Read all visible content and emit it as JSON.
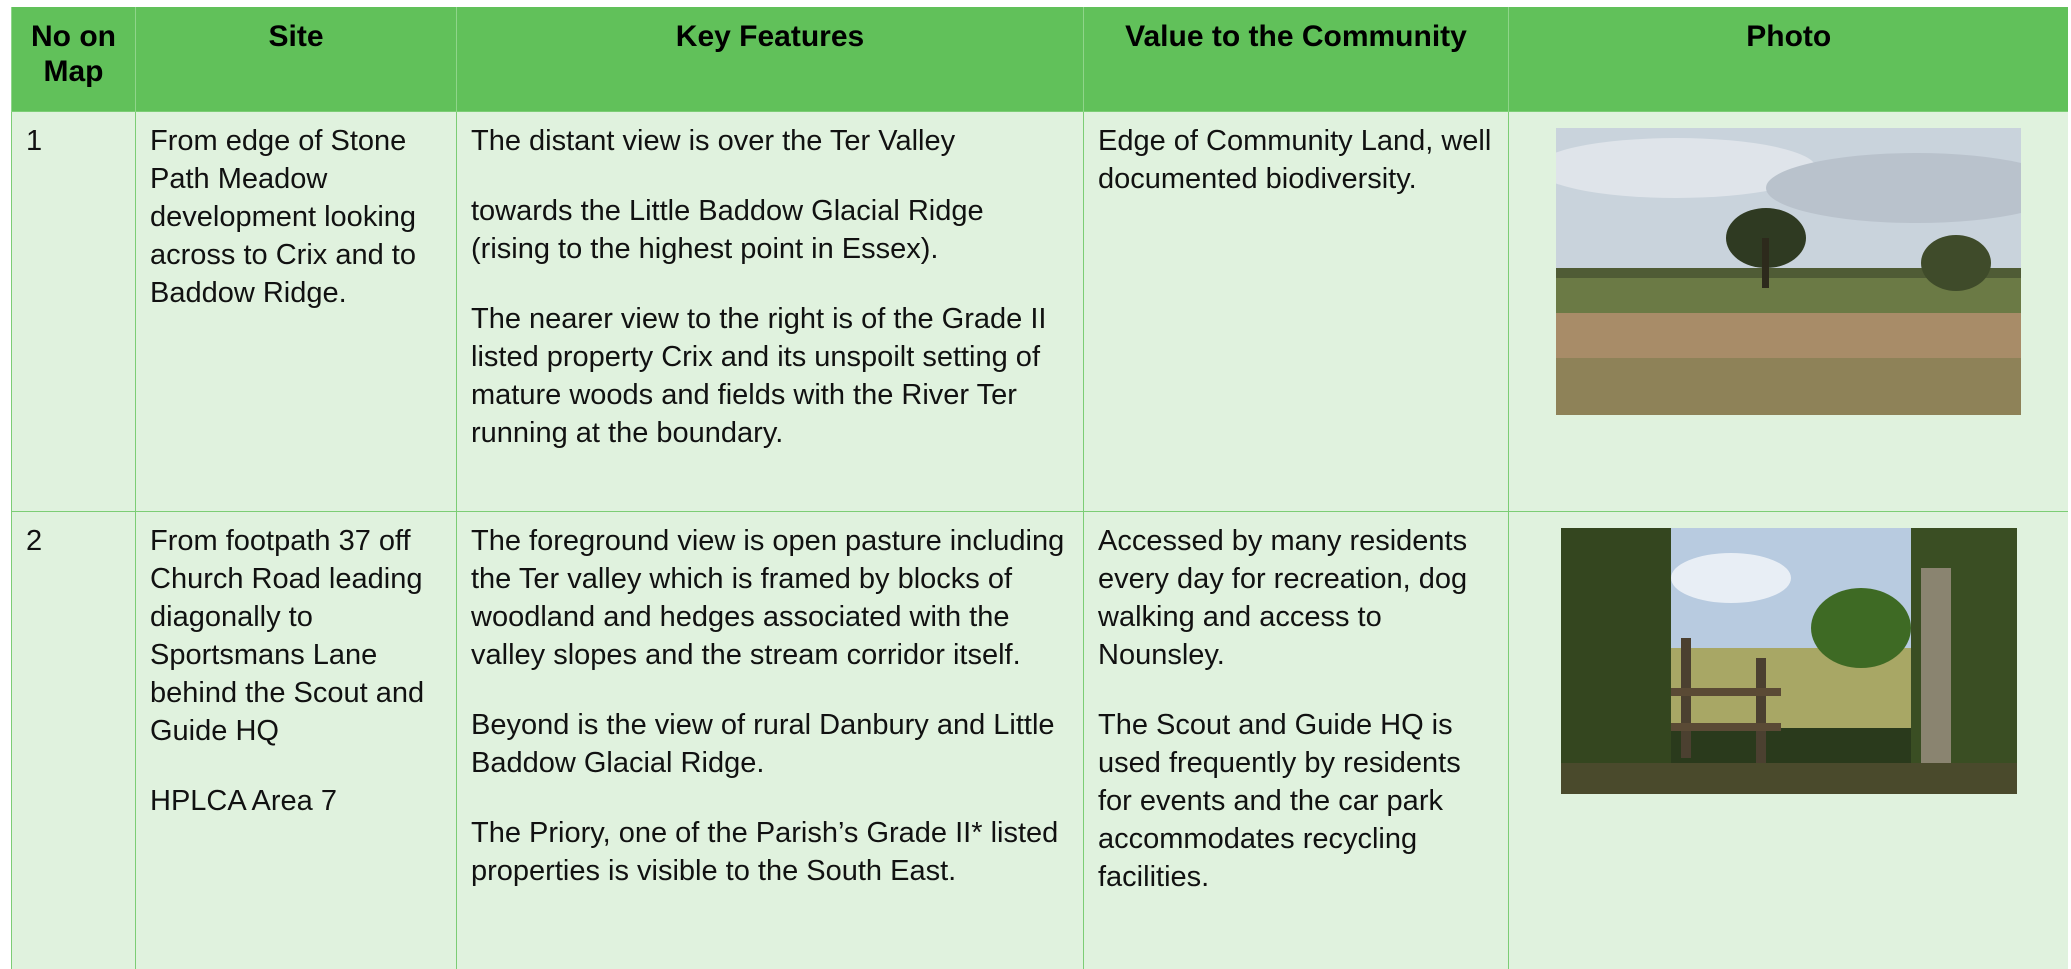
{
  "header": {
    "columns": [
      "No on Map",
      "Site",
      "Key Features",
      "Value to the Community",
      "Photo"
    ]
  },
  "rows": [
    {
      "number": "1",
      "site": [
        "From edge of Stone Path Meadow development looking across to Crix and to Baddow Ridge."
      ],
      "features": [
        "The distant view is over the Ter Valley",
        "towards the Little Baddow Glacial Ridge (rising to the highest point in Essex).",
        "The nearer view to the right is of the Grade II listed property Crix and its unspoilt setting of mature woods and fields with the River Ter running at the boundary."
      ],
      "value": [
        "Edge of Community Land, well documented biodiversity."
      ]
    },
    {
      "number": "2",
      "site": [
        "From footpath 37 off Church Road leading diagonally to Sportsmans Lane behind the Scout and Guide HQ",
        "HPLCA Area 7"
      ],
      "features": [
        "The foreground view is open pasture including the Ter valley which is framed by blocks of woodland and hedges associated with the valley slopes and the stream corridor itself.",
        "Beyond is the view of rural Danbury and Little Baddow Glacial Ridge.",
        "The Priory, one of the Parish’s Grade II* listed properties is visible to the South East."
      ],
      "value": [
        "Accessed by many residents every day for recreation, dog walking and access to Nounsley.",
        "The Scout and Guide HQ is used frequently by residents for events and the car park accommodates recycling facilities."
      ]
    }
  ]
}
